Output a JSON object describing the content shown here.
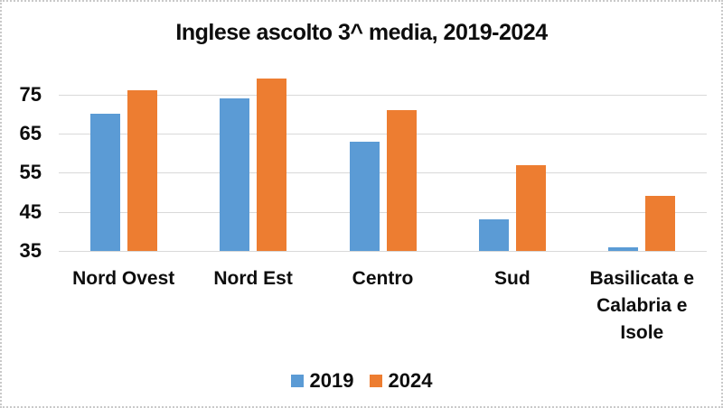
{
  "chart_data": {
    "type": "bar",
    "title": "Inglese ascolto 3^ media, 2019-2024",
    "categories": [
      "Nord Ovest",
      "Nord Est",
      "Centro",
      "Sud",
      "Basilicata e Calabria e Isole"
    ],
    "series": [
      {
        "name": "2019",
        "color": "#5B9BD5",
        "values": [
          70,
          74,
          63,
          43,
          36
        ]
      },
      {
        "name": "2024",
        "color": "#ED7D31",
        "values": [
          76,
          79,
          71,
          57,
          49
        ]
      }
    ],
    "ylim": [
      35,
      80
    ],
    "yticks": [
      75,
      65,
      55,
      45,
      35
    ],
    "grid": true,
    "legend_position": "bottom",
    "xlabel": "",
    "ylabel": "",
    "colors": {
      "gridline": "#D9D9D9",
      "text": "#0D0D0D",
      "background": "#FFFFFF",
      "frame_border": "#C9C9C9"
    }
  }
}
